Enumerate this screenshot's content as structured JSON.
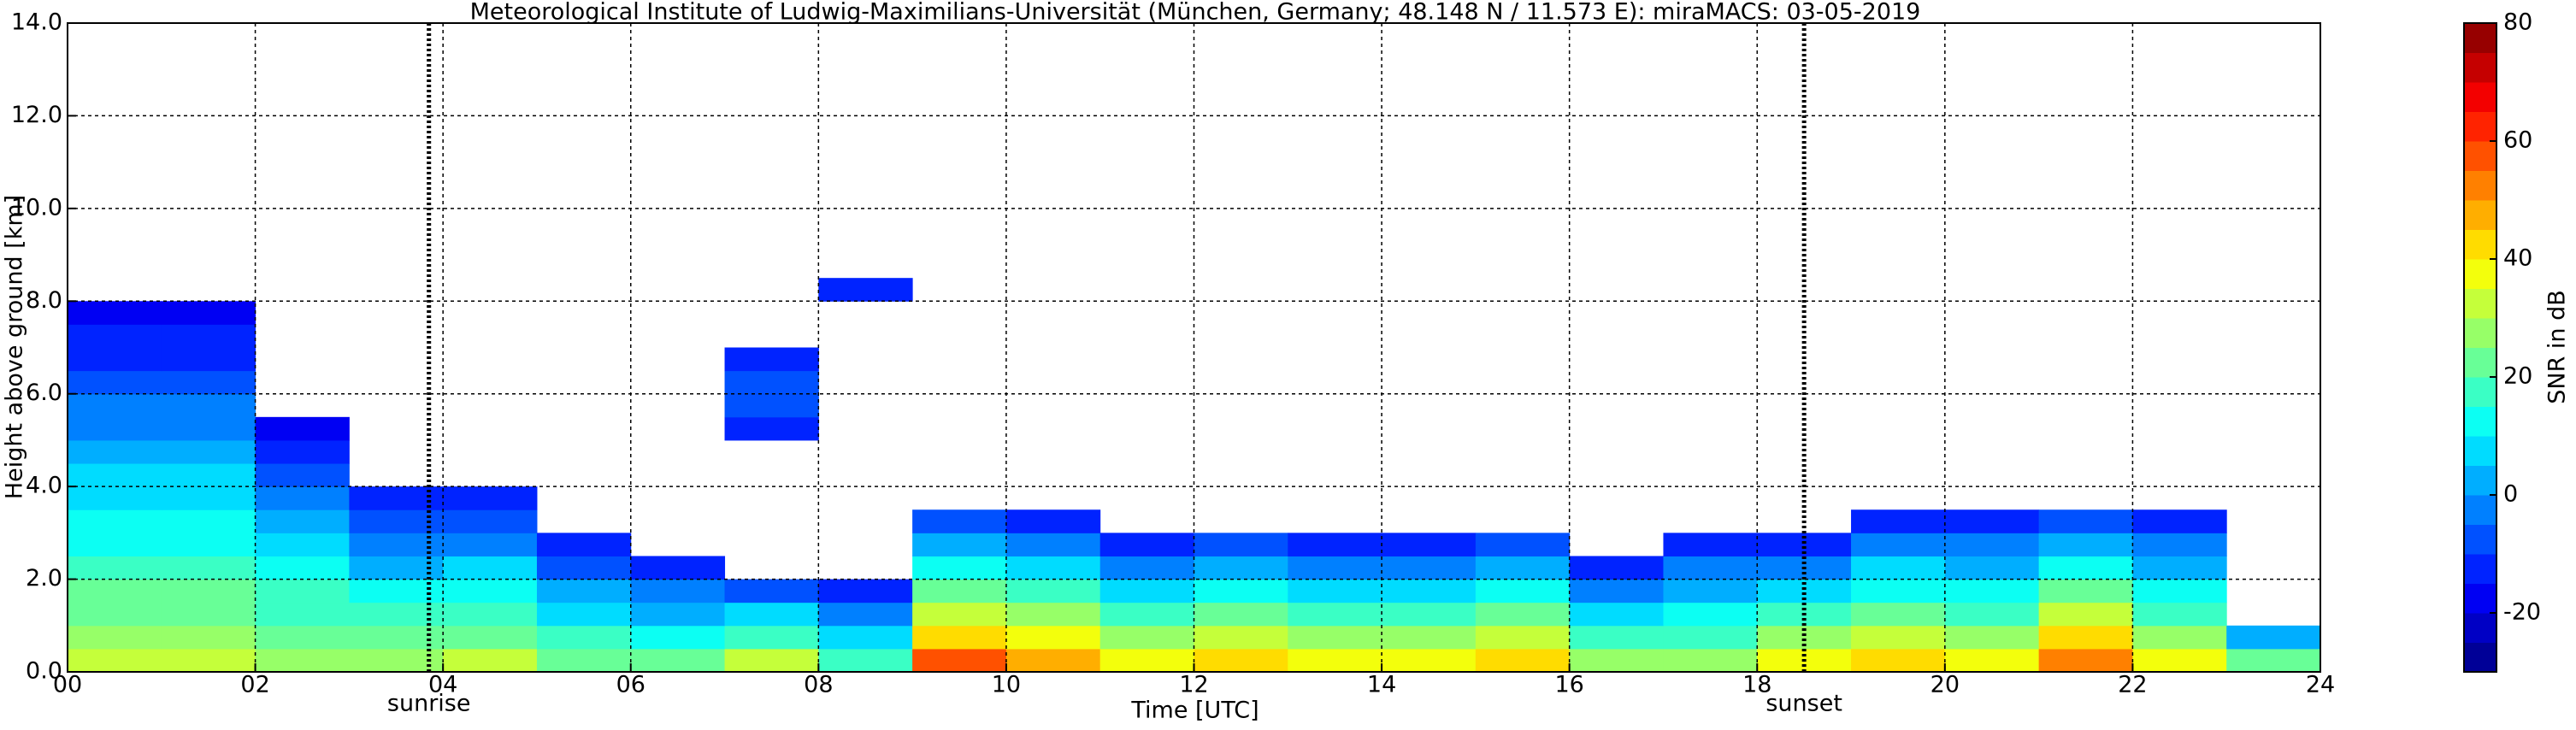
{
  "chart_data": {
    "type": "heatmap",
    "title": "Meteorological Institute of Ludwig-Maximilians-Universität (München, Germany; 48.148 N / 11.573 E):    miraMACS: 03-05-2019",
    "xlabel": "Time [UTC]",
    "ylabel": "Height above ground [km]",
    "xlim": [
      0,
      24
    ],
    "ylim": [
      0,
      14
    ],
    "xticks": [
      {
        "value": 0,
        "label": "00"
      },
      {
        "value": 2,
        "label": "02"
      },
      {
        "value": 4,
        "label": "04"
      },
      {
        "value": 6,
        "label": "06"
      },
      {
        "value": 8,
        "label": "08"
      },
      {
        "value": 10,
        "label": "10"
      },
      {
        "value": 12,
        "label": "12"
      },
      {
        "value": 14,
        "label": "14"
      },
      {
        "value": 16,
        "label": "16"
      },
      {
        "value": 18,
        "label": "18"
      },
      {
        "value": 20,
        "label": "20"
      },
      {
        "value": 22,
        "label": "22"
      },
      {
        "value": 24,
        "label": "24"
      }
    ],
    "yticks": [
      {
        "value": 0,
        "label": "0.0"
      },
      {
        "value": 2,
        "label": "2.0"
      },
      {
        "value": 4,
        "label": "4.0"
      },
      {
        "value": 6,
        "label": "6.0"
      },
      {
        "value": 8,
        "label": "8.0"
      },
      {
        "value": 10,
        "label": "10.0"
      },
      {
        "value": 12,
        "label": "12.0"
      },
      {
        "value": 14,
        "label": "14.0"
      }
    ],
    "grid": true,
    "xbins": [
      0,
      1,
      2,
      3,
      4,
      5,
      6,
      7,
      8,
      9,
      10,
      11,
      12,
      13,
      14,
      15,
      16,
      17,
      18,
      19,
      20,
      21,
      22,
      23,
      24
    ],
    "ybins": [
      0,
      0.5,
      1,
      1.5,
      2,
      2.5,
      3,
      3.5,
      4,
      4.5,
      5,
      5.5,
      6,
      6.5,
      7,
      7.5,
      8,
      8.5
    ],
    "z": [
      [
        30,
        30,
        28,
        28,
        30,
        22,
        20,
        30,
        15,
        55,
        45,
        35,
        40,
        35,
        35,
        40,
        25,
        25,
        35,
        40,
        35,
        50,
        35,
        20
      ],
      [
        27,
        27,
        24,
        22,
        24,
        15,
        12,
        18,
        6,
        44,
        36,
        26,
        30,
        26,
        26,
        30,
        16,
        18,
        26,
        31,
        27,
        40,
        27,
        0
      ],
      [
        24,
        24,
        19,
        16,
        18,
        8,
        4,
        5,
        -3,
        34,
        26,
        17,
        20,
        17,
        17,
        20,
        7,
        10,
        17,
        23,
        19,
        30,
        19,
        null
      ],
      [
        21,
        21,
        15,
        10,
        11,
        1,
        -4,
        -8,
        -11,
        23,
        17,
        7,
        10,
        7,
        7,
        10,
        -2,
        3,
        7,
        14,
        11,
        20,
        11,
        null
      ],
      [
        18,
        18,
        11,
        4,
        5,
        -6,
        -12,
        null,
        null,
        12,
        8,
        -2,
        0,
        -2,
        -2,
        0,
        -11,
        -5,
        -2,
        6,
        4,
        10,
        4,
        null
      ],
      [
        14,
        14,
        6,
        -2,
        -1,
        -13,
        null,
        null,
        null,
        2,
        -2,
        -11,
        -10,
        -11,
        -11,
        -10,
        null,
        -12,
        -11,
        -3,
        -4,
        0,
        -4,
        null
      ],
      [
        11,
        11,
        2,
        -8,
        -8,
        null,
        null,
        null,
        null,
        -9,
        -11,
        null,
        null,
        null,
        null,
        null,
        null,
        null,
        null,
        -11,
        -12,
        -10,
        -12,
        null
      ],
      [
        8,
        8,
        -3,
        -14,
        -14,
        null,
        null,
        null,
        null,
        null,
        null,
        null,
        null,
        null,
        null,
        null,
        null,
        null,
        null,
        null,
        null,
        null,
        null,
        null
      ],
      [
        5,
        5,
        -7,
        null,
        null,
        null,
        null,
        null,
        null,
        null,
        null,
        null,
        null,
        null,
        null,
        null,
        null,
        null,
        null,
        null,
        null,
        null,
        null,
        null
      ],
      [
        2,
        2,
        -11,
        null,
        null,
        null,
        null,
        null,
        null,
        null,
        null,
        null,
        null,
        null,
        null,
        null,
        null,
        null,
        null,
        null,
        null,
        null,
        null,
        null
      ],
      [
        -1,
        -1,
        -16,
        null,
        null,
        null,
        null,
        -12,
        null,
        null,
        null,
        null,
        null,
        null,
        null,
        null,
        null,
        null,
        null,
        null,
        null,
        null,
        null,
        null
      ],
      [
        -4,
        -4,
        null,
        null,
        null,
        null,
        null,
        -8,
        null,
        null,
        null,
        null,
        null,
        null,
        null,
        null,
        null,
        null,
        null,
        null,
        null,
        null,
        null,
        null
      ],
      [
        -8,
        -8,
        null,
        null,
        null,
        null,
        null,
        -8,
        null,
        null,
        null,
        null,
        null,
        null,
        null,
        null,
        null,
        null,
        null,
        null,
        null,
        null,
        null,
        null
      ],
      [
        -11,
        -11,
        null,
        null,
        null,
        null,
        null,
        -15,
        null,
        null,
        null,
        null,
        null,
        null,
        null,
        null,
        null,
        null,
        null,
        null,
        null,
        null,
        null,
        null
      ],
      [
        -14,
        -14,
        null,
        null,
        null,
        null,
        null,
        null,
        null,
        null,
        null,
        null,
        null,
        null,
        null,
        null,
        null,
        null,
        null,
        null,
        null,
        null,
        null,
        null
      ],
      [
        -17,
        -17,
        null,
        null,
        null,
        null,
        null,
        null,
        null,
        null,
        null,
        null,
        null,
        null,
        null,
        null,
        null,
        null,
        null,
        null,
        null,
        null,
        null,
        null
      ],
      [
        null,
        null,
        null,
        null,
        null,
        null,
        null,
        null,
        -15,
        null,
        null,
        null,
        null,
        null,
        null,
        null,
        null,
        null,
        null,
        null,
        null,
        null,
        null,
        null
      ]
    ],
    "annotations": [
      {
        "x": 3.85,
        "label": "sunrise"
      },
      {
        "x": 18.5,
        "label": "sunset"
      }
    ],
    "colorbar": {
      "label": "SNR in dB",
      "lim": [
        -30,
        80
      ],
      "ticks": [
        -20,
        0,
        20,
        40,
        60,
        80
      ],
      "step": 5,
      "colormap": "jet"
    }
  }
}
